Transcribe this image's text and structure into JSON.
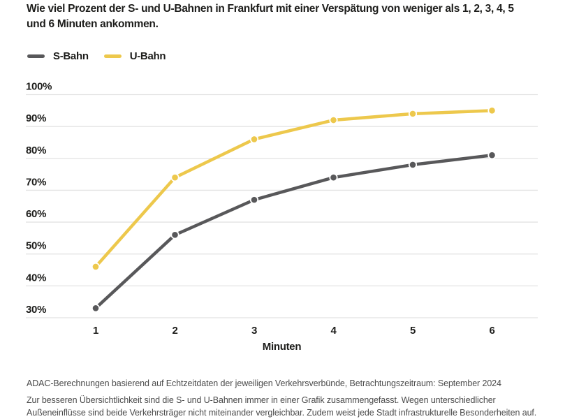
{
  "page": {
    "title_line1": "Wie viel Prozent der S- und U-Bahnen in Frankfurt mit einer Verspätung von weniger als 1, 2, 3, 4, 5",
    "title_line2": "und 6 Minuten ankommen."
  },
  "chart_data": {
    "type": "line",
    "title": "Wie viel Prozent der S- und U-Bahnen in Frankfurt mit einer Verspätung von weniger als 1, 2, 3, 4, 5 und 6 Minuten ankommen.",
    "x": [
      1,
      2,
      3,
      4,
      5,
      6
    ],
    "xlabel": "Minuten",
    "ylabel": "",
    "ylim": [
      30,
      100
    ],
    "yticks": [
      30,
      40,
      50,
      60,
      70,
      80,
      90,
      100
    ],
    "ytick_suffix": "%",
    "grid": true,
    "legend_position": "top-left",
    "series": [
      {
        "name": "S-Bahn",
        "color": "#58585a",
        "values": [
          33,
          56,
          67,
          74,
          78,
          81
        ]
      },
      {
        "name": "U-Bahn",
        "color": "#edc84c",
        "values": [
          46,
          74,
          86,
          92,
          94,
          95
        ]
      }
    ],
    "colors": {
      "gridline": "#e2e2e2",
      "text": "#1d1d1b",
      "marker_halo": "#ffffff"
    }
  },
  "footer": {
    "source_line": "ADAC-Berechnungen basierend auf Echtzeitdaten der jeweiligen Verkehrsverbünde, Betrachtungszeitraum: September 2024",
    "note_line": "Zur besseren Übersichtlichkeit sind die S- und U-Bahnen immer in einer Grafik zusammengefasst. Wegen unterschiedlicher Außeneinflüsse sind beide Verkehrsträger nicht miteinander vergleichbar. Zudem weist jede Stadt infrastrukturelle Besonderheiten auf."
  }
}
